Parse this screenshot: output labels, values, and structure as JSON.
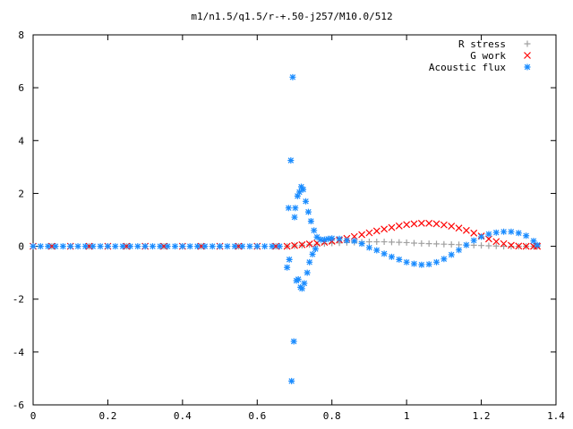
{
  "chart_data": {
    "type": "scatter",
    "title": "m1/n1.5/q1.5/r-+.50-j257/M10.0/512",
    "xlabel": "",
    "ylabel": "",
    "xlim": [
      0,
      1.4
    ],
    "ylim": [
      -6,
      8
    ],
    "x_ticks": [
      "0",
      "0.2",
      "0.4",
      "0.6",
      "0.8",
      "1",
      "1.2",
      "1.4"
    ],
    "y_ticks": [
      "-6",
      "-4",
      "-2",
      "0",
      "2",
      "4",
      "6",
      "8"
    ],
    "grid": false,
    "legend_position": "top-right",
    "series": [
      {
        "name": "R stress",
        "marker": "plus",
        "color": "#a0a0a0",
        "points": [
          [
            0.0,
            0
          ],
          [
            0.05,
            0
          ],
          [
            0.1,
            0
          ],
          [
            0.15,
            0
          ],
          [
            0.2,
            0
          ],
          [
            0.25,
            0
          ],
          [
            0.3,
            0
          ],
          [
            0.35,
            0
          ],
          [
            0.4,
            0
          ],
          [
            0.45,
            0
          ],
          [
            0.5,
            0
          ],
          [
            0.55,
            0
          ],
          [
            0.6,
            0
          ],
          [
            0.65,
            0
          ],
          [
            0.68,
            0
          ],
          [
            0.7,
            0.02
          ],
          [
            0.72,
            0.04
          ],
          [
            0.74,
            0.06
          ],
          [
            0.76,
            0.08
          ],
          [
            0.78,
            0.1
          ],
          [
            0.8,
            0.12
          ],
          [
            0.82,
            0.13
          ],
          [
            0.84,
            0.14
          ],
          [
            0.86,
            0.15
          ],
          [
            0.88,
            0.16
          ],
          [
            0.9,
            0.17
          ],
          [
            0.92,
            0.17
          ],
          [
            0.94,
            0.17
          ],
          [
            0.96,
            0.16
          ],
          [
            0.98,
            0.15
          ],
          [
            1.0,
            0.14
          ],
          [
            1.02,
            0.12
          ],
          [
            1.04,
            0.11
          ],
          [
            1.06,
            0.1
          ],
          [
            1.08,
            0.09
          ],
          [
            1.1,
            0.08
          ],
          [
            1.12,
            0.07
          ],
          [
            1.14,
            0.06
          ],
          [
            1.16,
            0.05
          ],
          [
            1.18,
            0.04
          ],
          [
            1.2,
            0.03
          ],
          [
            1.22,
            0.02
          ],
          [
            1.24,
            0.01
          ],
          [
            1.26,
            0.0
          ],
          [
            1.28,
            0.0
          ],
          [
            1.3,
            0.0
          ],
          [
            1.32,
            0.0
          ],
          [
            1.34,
            0.0
          ],
          [
            1.35,
            0.0
          ]
        ]
      },
      {
        "name": "G work",
        "marker": "cross",
        "color": "#ff0000",
        "points": [
          [
            0.0,
            0
          ],
          [
            0.05,
            0
          ],
          [
            0.1,
            0
          ],
          [
            0.15,
            0
          ],
          [
            0.2,
            0
          ],
          [
            0.25,
            0
          ],
          [
            0.3,
            0
          ],
          [
            0.35,
            0
          ],
          [
            0.4,
            0
          ],
          [
            0.45,
            0
          ],
          [
            0.5,
            0
          ],
          [
            0.55,
            0
          ],
          [
            0.6,
            0
          ],
          [
            0.65,
            0
          ],
          [
            0.68,
            0
          ],
          [
            0.7,
            0.03
          ],
          [
            0.72,
            0.06
          ],
          [
            0.74,
            0.09
          ],
          [
            0.76,
            0.12
          ],
          [
            0.78,
            0.15
          ],
          [
            0.8,
            0.19
          ],
          [
            0.82,
            0.24
          ],
          [
            0.84,
            0.3
          ],
          [
            0.86,
            0.37
          ],
          [
            0.88,
            0.44
          ],
          [
            0.9,
            0.51
          ],
          [
            0.92,
            0.58
          ],
          [
            0.94,
            0.65
          ],
          [
            0.96,
            0.71
          ],
          [
            0.98,
            0.77
          ],
          [
            1.0,
            0.82
          ],
          [
            1.02,
            0.85
          ],
          [
            1.04,
            0.87
          ],
          [
            1.06,
            0.87
          ],
          [
            1.08,
            0.85
          ],
          [
            1.1,
            0.81
          ],
          [
            1.12,
            0.76
          ],
          [
            1.14,
            0.69
          ],
          [
            1.16,
            0.6
          ],
          [
            1.18,
            0.5
          ],
          [
            1.2,
            0.39
          ],
          [
            1.22,
            0.28
          ],
          [
            1.24,
            0.18
          ],
          [
            1.26,
            0.1
          ],
          [
            1.28,
            0.04
          ],
          [
            1.3,
            0.01
          ],
          [
            1.32,
            0.0
          ],
          [
            1.34,
            0.0
          ],
          [
            1.35,
            0.0
          ]
        ]
      },
      {
        "name": "Acoustic flux",
        "marker": "star",
        "color": "#1a8cff",
        "points": [
          [
            0.0,
            0
          ],
          [
            0.02,
            0
          ],
          [
            0.04,
            0
          ],
          [
            0.06,
            0
          ],
          [
            0.08,
            0
          ],
          [
            0.1,
            0
          ],
          [
            0.12,
            0
          ],
          [
            0.14,
            0
          ],
          [
            0.16,
            0
          ],
          [
            0.18,
            0
          ],
          [
            0.2,
            0
          ],
          [
            0.22,
            0
          ],
          [
            0.24,
            0
          ],
          [
            0.26,
            0
          ],
          [
            0.28,
            0
          ],
          [
            0.3,
            0
          ],
          [
            0.32,
            0
          ],
          [
            0.34,
            0
          ],
          [
            0.36,
            0
          ],
          [
            0.38,
            0
          ],
          [
            0.4,
            0
          ],
          [
            0.42,
            0
          ],
          [
            0.44,
            0
          ],
          [
            0.46,
            0
          ],
          [
            0.48,
            0
          ],
          [
            0.5,
            0
          ],
          [
            0.52,
            0
          ],
          [
            0.54,
            0
          ],
          [
            0.56,
            0
          ],
          [
            0.58,
            0
          ],
          [
            0.6,
            0
          ],
          [
            0.62,
            0
          ],
          [
            0.64,
            0
          ],
          [
            0.66,
            0
          ],
          [
            0.68,
            -0.8
          ],
          [
            0.684,
            1.45
          ],
          [
            0.686,
            -0.5
          ],
          [
            0.69,
            3.25
          ],
          [
            0.692,
            -5.1
          ],
          [
            0.695,
            6.4
          ],
          [
            0.698,
            -3.6
          ],
          [
            0.7,
            1.1
          ],
          [
            0.702,
            1.45
          ],
          [
            0.705,
            -1.3
          ],
          [
            0.708,
            1.9
          ],
          [
            0.71,
            -1.25
          ],
          [
            0.713,
            2.05
          ],
          [
            0.716,
            -1.55
          ],
          [
            0.718,
            2.25
          ],
          [
            0.72,
            -1.6
          ],
          [
            0.723,
            2.15
          ],
          [
            0.726,
            -1.4
          ],
          [
            0.73,
            1.7
          ],
          [
            0.734,
            -1.0
          ],
          [
            0.737,
            1.3
          ],
          [
            0.74,
            -0.6
          ],
          [
            0.744,
            0.95
          ],
          [
            0.748,
            -0.3
          ],
          [
            0.752,
            0.6
          ],
          [
            0.756,
            -0.1
          ],
          [
            0.76,
            0.35
          ],
          [
            0.77,
            0.25
          ],
          [
            0.78,
            0.25
          ],
          [
            0.79,
            0.28
          ],
          [
            0.8,
            0.3
          ],
          [
            0.82,
            0.28
          ],
          [
            0.84,
            0.22
          ],
          [
            0.86,
            0.2
          ],
          [
            0.88,
            0.1
          ],
          [
            0.9,
            -0.05
          ],
          [
            0.92,
            -0.15
          ],
          [
            0.94,
            -0.28
          ],
          [
            0.96,
            -0.4
          ],
          [
            0.98,
            -0.5
          ],
          [
            1.0,
            -0.6
          ],
          [
            1.02,
            -0.66
          ],
          [
            1.04,
            -0.7
          ],
          [
            1.06,
            -0.68
          ],
          [
            1.08,
            -0.6
          ],
          [
            1.1,
            -0.48
          ],
          [
            1.12,
            -0.32
          ],
          [
            1.14,
            -0.14
          ],
          [
            1.16,
            0.05
          ],
          [
            1.18,
            0.22
          ],
          [
            1.2,
            0.36
          ],
          [
            1.22,
            0.46
          ],
          [
            1.24,
            0.52
          ],
          [
            1.26,
            0.55
          ],
          [
            1.28,
            0.55
          ],
          [
            1.3,
            0.5
          ],
          [
            1.32,
            0.4
          ],
          [
            1.34,
            0.2
          ],
          [
            1.35,
            0.05
          ]
        ]
      }
    ]
  }
}
